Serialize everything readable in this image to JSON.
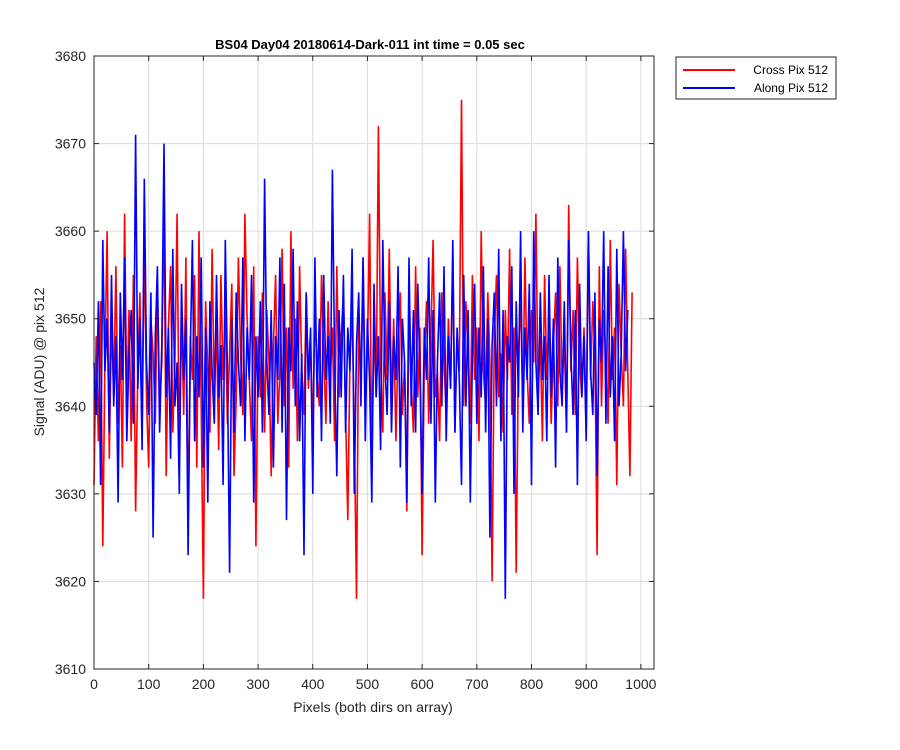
{
  "chart_data": {
    "type": "line",
    "title": "BS04 Day04 20180614-Dark-011 int time = 0.05 sec",
    "xlabel": "Pixels (both dirs on array)",
    "ylabel": "Signal (ADU) @ pix 512",
    "xlim": [
      0,
      1024
    ],
    "ylim": [
      3610,
      3680
    ],
    "xticks": [
      0,
      100,
      200,
      300,
      400,
      500,
      600,
      700,
      800,
      900,
      1000
    ],
    "yticks": [
      3610,
      3620,
      3630,
      3640,
      3650,
      3660,
      3670,
      3680
    ],
    "grid": true,
    "legend_position": "outside-top-right",
    "series": [
      {
        "name": "Cross Pix 512",
        "color": "#ff0000",
        "x_start": 0,
        "x_step": 4,
        "values": [
          3631,
          3648,
          3636,
          3652,
          3624,
          3645,
          3660,
          3634,
          3650,
          3641,
          3656,
          3638,
          3647,
          3633,
          3662,
          3640,
          3651,
          3636,
          3655,
          3628,
          3644,
          3653,
          3637,
          3659,
          3641,
          3633,
          3650,
          3646,
          3638,
          3654,
          3640,
          3645,
          3663,
          3632,
          3649,
          3656,
          3637,
          3645,
          3662,
          3634,
          3651,
          3639,
          3657,
          3626,
          3648,
          3643,
          3655,
          3633,
          3660,
          3640,
          3618,
          3652,
          3644,
          3637,
          3658,
          3641,
          3649,
          3635,
          3655,
          3643,
          3651,
          3638,
          3646,
          3654,
          3632,
          3641,
          3657,
          3646,
          3639,
          3662,
          3650,
          3643,
          3636,
          3656,
          3624,
          3648,
          3641,
          3653,
          3637,
          3651,
          3645,
          3632,
          3647,
          3655,
          3638,
          3644,
          3658,
          3640,
          3649,
          3633,
          3660,
          3642,
          3650,
          3636,
          3656,
          3644,
          3639,
          3653,
          3642,
          3647,
          3637,
          3651,
          3644,
          3640,
          3655,
          3646,
          3638,
          3652,
          3643,
          3649,
          3636,
          3656,
          3641,
          3648,
          3653,
          3639,
          3627,
          3645,
          3651,
          3638,
          3618,
          3650,
          3643,
          3657,
          3640,
          3646,
          3662,
          3633,
          3649,
          3641,
          3672,
          3645,
          3637,
          3653,
          3643,
          3658,
          3640,
          3650,
          3636,
          3647,
          3653,
          3639,
          3645,
          3628,
          3651,
          3643,
          3637,
          3656,
          3641,
          3649,
          3623,
          3645,
          3652,
          3638,
          3648,
          3659,
          3641,
          3644,
          3636,
          3653,
          3645,
          3639,
          3650,
          3642,
          3657,
          3637,
          3648,
          3644,
          3675,
          3640,
          3652,
          3646,
          3638,
          3655,
          3643,
          3649,
          3636,
          3660,
          3644,
          3640,
          3653,
          3645,
          3620,
          3648,
          3655,
          3641,
          3646,
          3637,
          3651,
          3643,
          3658,
          3639,
          3649,
          3621,
          3646,
          3652,
          3640,
          3657,
          3644,
          3638,
          3651,
          3645,
          3662,
          3641,
          3648,
          3636,
          3655,
          3643,
          3650,
          3638,
          3647,
          3653,
          3640,
          3656,
          3642,
          3648,
          3637,
          3663,
          3644,
          3651,
          3639,
          3657,
          3645,
          3641,
          3649,
          3637,
          3660,
          3643,
          3652,
          3646,
          3623,
          3656,
          3640,
          3651,
          3645,
          3638,
          3659,
          3643,
          3649,
          3631,
          3654,
          3646,
          3640,
          3658,
          3644,
          3632,
          3653
        ],
        "note_values": ""
      },
      {
        "name": "Along Pix 512",
        "color": "#0000ff",
        "x_start": 0,
        "x_step": 4,
        "values": [
          3645,
          3639,
          3652,
          3631,
          3659,
          3644,
          3650,
          3637,
          3655,
          3640,
          3648,
          3629,
          3653,
          3643,
          3657,
          3636,
          3646,
          3651,
          3638,
          3671,
          3642,
          3650,
          3635,
          3666,
          3645,
          3639,
          3653,
          3625,
          3648,
          3656,
          3637,
          3647,
          3670,
          3641,
          3649,
          3634,
          3658,
          3640,
          3645,
          3630,
          3654,
          3643,
          3650,
          3623,
          3646,
          3659,
          3636,
          3648,
          3641,
          3657,
          3633,
          3649,
          3629,
          3652,
          3644,
          3638,
          3655,
          3641,
          3647,
          3631,
          3659,
          3644,
          3621,
          3650,
          3637,
          3653,
          3645,
          3640,
          3657,
          3636,
          3649,
          3643,
          3655,
          3629,
          3648,
          3641,
          3652,
          3637,
          3666,
          3645,
          3639,
          3651,
          3633,
          3648,
          3643,
          3657,
          3637,
          3654,
          3627,
          3649,
          3644,
          3658,
          3640,
          3652,
          3636,
          3646,
          3623,
          3653,
          3643,
          3649,
          3630,
          3657,
          3641,
          3650,
          3636,
          3655,
          3643,
          3648,
          3638,
          3667,
          3645,
          3632,
          3651,
          3641,
          3655,
          3637,
          3649,
          3644,
          3658,
          3630,
          3647,
          3653,
          3640,
          3657,
          3636,
          3650,
          3643,
          3629,
          3654,
          3641,
          3648,
          3635,
          3659,
          3645,
          3639,
          3652,
          3637,
          3648,
          3643,
          3656,
          3633,
          3650,
          3645,
          3629,
          3657,
          3640,
          3651,
          3637,
          3654,
          3644,
          3630,
          3649,
          3643,
          3657,
          3638,
          3651,
          3629,
          3645,
          3653,
          3640,
          3656,
          3636,
          3648,
          3642,
          3659,
          3637,
          3649,
          3643,
          3631,
          3655,
          3640,
          3651,
          3629,
          3646,
          3654,
          3638,
          3649,
          3641,
          3656,
          3637,
          3650,
          3625,
          3647,
          3653,
          3640,
          3658,
          3636,
          3651,
          3618,
          3648,
          3645,
          3656,
          3630,
          3652,
          3641,
          3660,
          3637,
          3649,
          3643,
          3654,
          3631,
          3660,
          3645,
          3639,
          3653,
          3643,
          3648,
          3636,
          3655,
          3641,
          3650,
          3633,
          3657,
          3644,
          3640,
          3652,
          3637,
          3659,
          3646,
          3639,
          3651,
          3631,
          3654,
          3641,
          3648,
          3636,
          3660,
          3644,
          3639,
          3653,
          3632,
          3650,
          3645,
          3660,
          3638,
          3656,
          3641,
          3648,
          3636,
          3658,
          3640,
          3646,
          3660,
          3644,
          3651
        ],
        "note_values": ""
      }
    ]
  }
}
